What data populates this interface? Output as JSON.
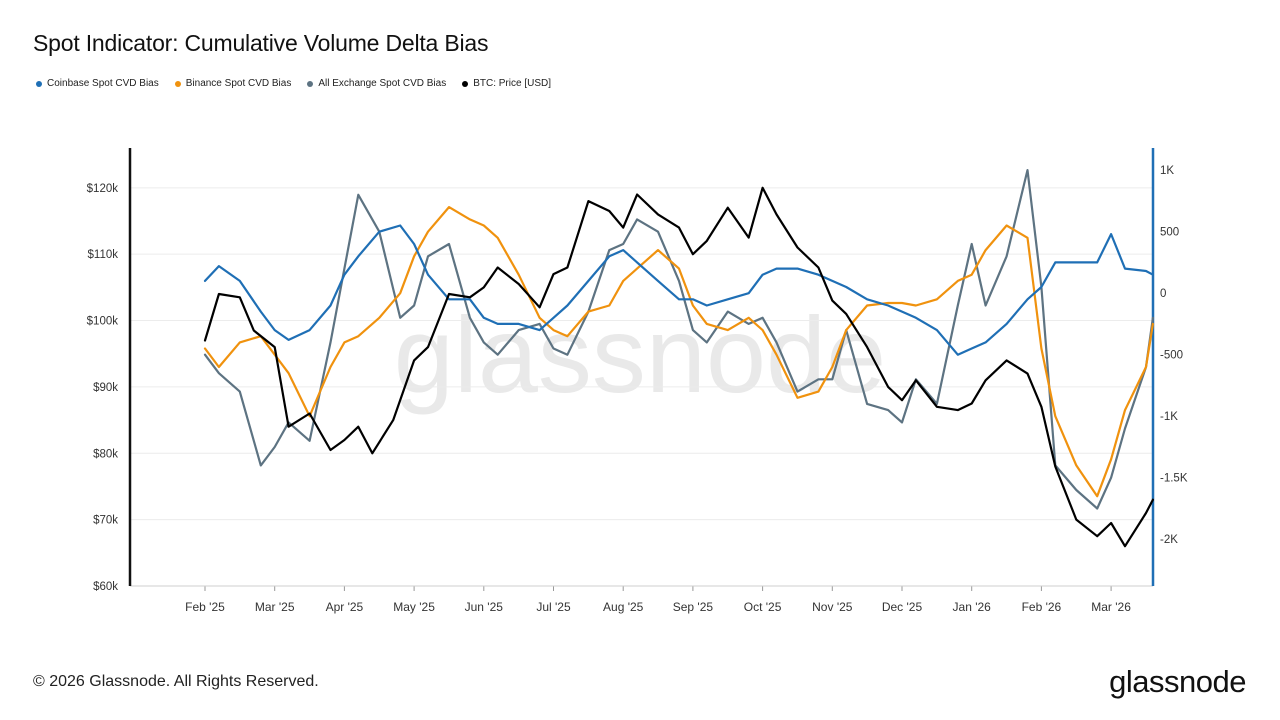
{
  "title": "Spot Indicator: Cumulative Volume Delta Bias",
  "watermark": "glassnode",
  "footer": "© 2026 Glassnode. All Rights Reserved.",
  "brand": "glassnode",
  "legend": [
    {
      "label": "Coinbase Spot CVD Bias",
      "color": "#1f6fb5"
    },
    {
      "label": "Binance Spot CVD Bias",
      "color": "#f0920e"
    },
    {
      "label": "All Exchange Spot CVD Bias",
      "color": "#5d7382"
    },
    {
      "label": "BTC: Price [USD]",
      "color": "#000000"
    }
  ],
  "chart_data": {
    "type": "line",
    "x_labels": [
      "Feb '25",
      "Mar '25",
      "Apr '25",
      "May '25",
      "Jun '25",
      "Jul '25",
      "Aug '25",
      "Sep '25",
      "Oct '25",
      "Nov '25",
      "Dec '25",
      "Jan '26",
      "Feb '26",
      "Mar '26"
    ],
    "y_left": {
      "ticks": [
        "$120k",
        "$110k",
        "$100k",
        "$90k",
        "$80k",
        "$70k",
        "$60k"
      ],
      "min": 60000,
      "max": 126000
    },
    "y_right": {
      "ticks": [
        "1K",
        "500",
        "0",
        "-500",
        "-1K",
        "-1.5K",
        "-2K"
      ],
      "min": -2380,
      "max": 1180
    },
    "grid": true,
    "legend_position": "top-left",
    "series": [
      {
        "name": "Coinbase Spot CVD Bias",
        "axis": "right",
        "color": "#1f6fb5",
        "x": [
          0,
          0.2,
          0.5,
          0.8,
          1.0,
          1.2,
          1.5,
          1.8,
          2.0,
          2.2,
          2.5,
          2.8,
          3.0,
          3.2,
          3.5,
          3.8,
          4.0,
          4.2,
          4.5,
          4.8,
          5.0,
          5.2,
          5.5,
          5.8,
          6.0,
          6.2,
          6.5,
          6.8,
          7.0,
          7.2,
          7.5,
          7.8,
          8.0,
          8.2,
          8.5,
          8.8,
          9.0,
          9.2,
          9.5,
          9.8,
          10.0,
          10.2,
          10.5,
          10.8,
          11.0,
          11.2,
          11.5,
          11.8,
          12.0,
          12.2,
          12.5,
          12.8,
          13.0,
          13.2,
          13.5,
          13.6
        ],
        "y": [
          100,
          220,
          100,
          -150,
          -300,
          -380,
          -300,
          -100,
          150,
          300,
          500,
          550,
          400,
          150,
          -50,
          -50,
          -200,
          -250,
          -250,
          -300,
          -200,
          -100,
          100,
          300,
          350,
          250,
          100,
          -50,
          -50,
          -100,
          -50,
          0,
          150,
          200,
          200,
          150,
          100,
          50,
          -50,
          -100,
          -150,
          -200,
          -300,
          -500,
          -450,
          -400,
          -250,
          -50,
          50,
          250,
          250,
          250,
          480,
          200,
          180,
          150
        ]
      },
      {
        "name": "Binance Spot CVD Bias",
        "axis": "right",
        "color": "#f0920e",
        "x": [
          0,
          0.2,
          0.5,
          0.8,
          1.0,
          1.2,
          1.5,
          1.8,
          2.0,
          2.2,
          2.5,
          2.8,
          3.0,
          3.2,
          3.5,
          3.8,
          4.0,
          4.2,
          4.5,
          4.8,
          5.0,
          5.2,
          5.5,
          5.8,
          6.0,
          6.2,
          6.5,
          6.8,
          7.0,
          7.2,
          7.5,
          7.8,
          8.0,
          8.2,
          8.5,
          8.8,
          9.0,
          9.2,
          9.5,
          9.8,
          10.0,
          10.2,
          10.5,
          10.8,
          11.0,
          11.2,
          11.5,
          11.8,
          12.0,
          12.2,
          12.5,
          12.8,
          13.0,
          13.2,
          13.5,
          13.6
        ],
        "y": [
          -450,
          -600,
          -400,
          -350,
          -500,
          -650,
          -1000,
          -600,
          -400,
          -350,
          -200,
          0,
          300,
          500,
          700,
          600,
          550,
          450,
          150,
          -200,
          -300,
          -350,
          -150,
          -100,
          100,
          200,
          350,
          200,
          -100,
          -250,
          -300,
          -200,
          -300,
          -500,
          -850,
          -800,
          -600,
          -300,
          -100,
          -80,
          -80,
          -100,
          -50,
          100,
          150,
          350,
          550,
          450,
          -450,
          -1000,
          -1400,
          -1650,
          -1350,
          -950,
          -600,
          -250
        ]
      },
      {
        "name": "All Exchange Spot CVD Bias",
        "axis": "right",
        "color": "#5d7382",
        "x": [
          0,
          0.2,
          0.5,
          0.8,
          1.0,
          1.2,
          1.5,
          1.8,
          2.0,
          2.2,
          2.5,
          2.8,
          3.0,
          3.2,
          3.5,
          3.8,
          4.0,
          4.2,
          4.5,
          4.8,
          5.0,
          5.2,
          5.5,
          5.8,
          6.0,
          6.2,
          6.5,
          6.8,
          7.0,
          7.2,
          7.5,
          7.8,
          8.0,
          8.2,
          8.5,
          8.8,
          9.0,
          9.2,
          9.5,
          9.8,
          10.0,
          10.2,
          10.5,
          10.8,
          11.0,
          11.2,
          11.5,
          11.8,
          12.0,
          12.2,
          12.5,
          12.8,
          13.0,
          13.2,
          13.5,
          13.6
        ],
        "y": [
          -500,
          -650,
          -800,
          -1400,
          -1250,
          -1050,
          -1200,
          -400,
          200,
          800,
          500,
          -200,
          -100,
          300,
          400,
          -200,
          -400,
          -500,
          -300,
          -250,
          -450,
          -500,
          -150,
          350,
          400,
          600,
          500,
          100,
          -300,
          -400,
          -150,
          -250,
          -200,
          -400,
          -800,
          -700,
          -700,
          -300,
          -900,
          -950,
          -1050,
          -700,
          -900,
          -100,
          400,
          -100,
          300,
          1000,
          50,
          -1400,
          -1600,
          -1750,
          -1500,
          -1100,
          -600,
          -200
        ]
      },
      {
        "name": "BTC: Price [USD]",
        "axis": "left",
        "color": "#000000",
        "x": [
          0,
          0.2,
          0.5,
          0.7,
          1.0,
          1.2,
          1.5,
          1.8,
          2.0,
          2.2,
          2.4,
          2.7,
          3.0,
          3.2,
          3.5,
          3.8,
          4.0,
          4.2,
          4.5,
          4.8,
          5.0,
          5.2,
          5.5,
          5.8,
          6.0,
          6.2,
          6.5,
          6.8,
          7.0,
          7.2,
          7.5,
          7.8,
          8.0,
          8.2,
          8.5,
          8.8,
          9.0,
          9.2,
          9.5,
          9.8,
          10.0,
          10.2,
          10.5,
          10.8,
          11.0,
          11.2,
          11.5,
          11.8,
          12.0,
          12.2,
          12.5,
          12.8,
          13.0,
          13.2,
          13.5,
          13.6
        ],
        "y": [
          97000,
          104000,
          103500,
          98500,
          96000,
          84000,
          86000,
          80500,
          82000,
          84000,
          80000,
          85000,
          94000,
          96000,
          104000,
          103500,
          105000,
          108000,
          105500,
          102000,
          107000,
          108000,
          118000,
          116500,
          114000,
          119000,
          116000,
          114000,
          110000,
          112000,
          117000,
          112500,
          120000,
          116000,
          111000,
          108000,
          103000,
          101000,
          96000,
          90000,
          88000,
          91000,
          87000,
          86500,
          87500,
          91000,
          94000,
          92000,
          87000,
          78000,
          70000,
          67500,
          69500,
          66000,
          71000,
          73000
        ]
      }
    ]
  }
}
